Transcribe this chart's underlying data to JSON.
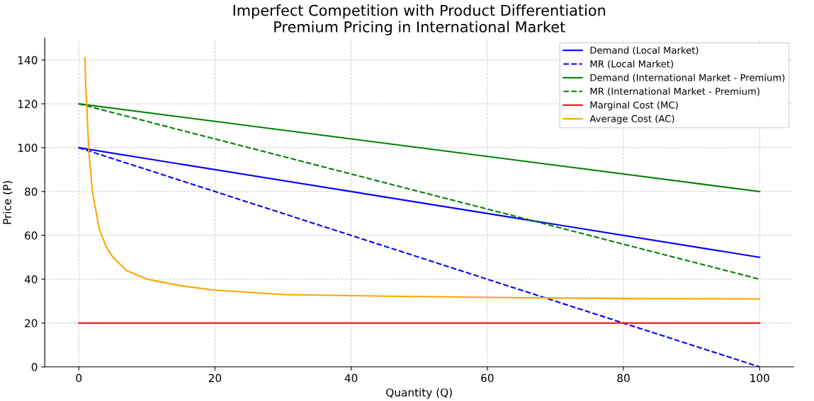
{
  "chart_data": {
    "type": "line",
    "title": "Imperfect Competition with Product Differentiation\nPremium Pricing in International Market",
    "xlabel": "Quantity (Q)",
    "ylabel": "Price (P)",
    "xlim": [
      -5,
      105
    ],
    "ylim": [
      0,
      150
    ],
    "xticks": [
      0,
      20,
      40,
      60,
      80,
      100
    ],
    "yticks": [
      0,
      20,
      40,
      60,
      80,
      100,
      120,
      140
    ],
    "grid": true,
    "legend": "top right",
    "series": [
      {
        "name": "Demand (Local Market)",
        "color": "#0000ff",
        "line_style": "solid",
        "x": [
          0,
          100
        ],
        "values": [
          100,
          50
        ]
      },
      {
        "name": "MR (Local Market)",
        "color": "#0000ff",
        "line_style": "dashed",
        "x": [
          0,
          100
        ],
        "values": [
          100,
          0
        ]
      },
      {
        "name": "Demand (International Market - Premium)",
        "color": "#008000",
        "line_style": "solid",
        "x": [
          0,
          100
        ],
        "values": [
          120,
          80
        ]
      },
      {
        "name": "MR (International Market - Premium)",
        "color": "#008000",
        "line_style": "dashed",
        "x": [
          0,
          100
        ],
        "values": [
          120,
          40
        ]
      },
      {
        "name": "Marginal Cost (MC)",
        "color": "#ff0000",
        "line_style": "solid",
        "x": [
          0,
          100
        ],
        "values": [
          20,
          20
        ]
      },
      {
        "name": "Average Cost (AC)",
        "color": "#ffa500",
        "line_style": "solid",
        "x": [
          0.9,
          1,
          1.5,
          2,
          3,
          4,
          5,
          7,
          10,
          15,
          20,
          30,
          40,
          60,
          80,
          100
        ],
        "values": [
          141,
          130,
          97,
          80,
          63,
          55,
          50,
          44,
          40,
          37,
          35,
          33,
          32.5,
          31.7,
          31.2,
          31
        ]
      }
    ]
  }
}
